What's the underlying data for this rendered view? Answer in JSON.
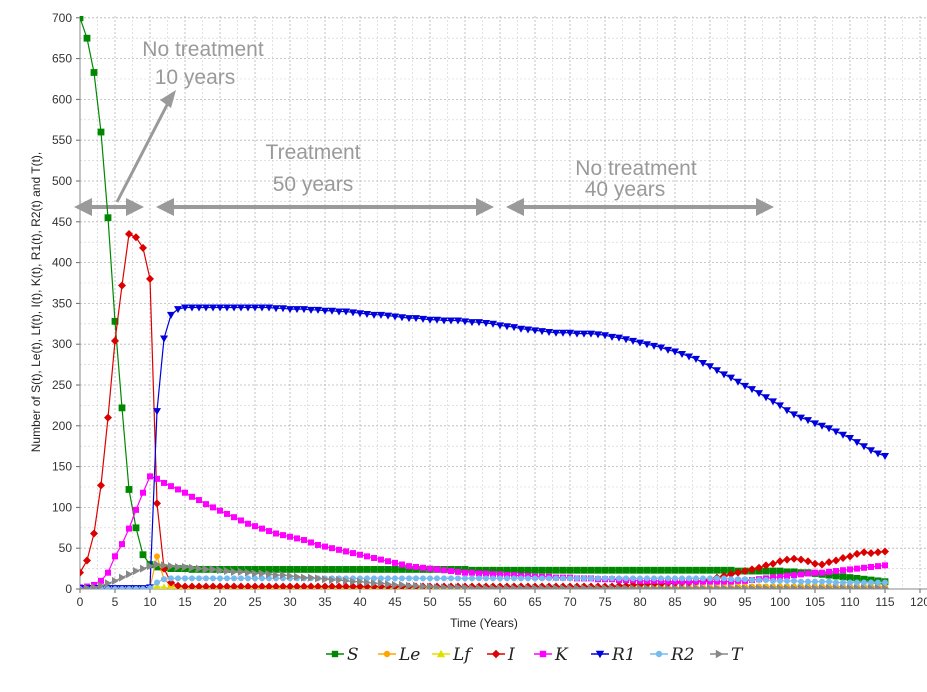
{
  "chart_data": {
    "type": "line",
    "title": "",
    "xlabel": "Time (Years)",
    "ylabel": "Number of S(t), Le(t), Lf(t), I(t), K(t), R1(t), R2(t) and T(t),",
    "xlim": [
      0,
      120
    ],
    "ylim": [
      0,
      700
    ],
    "xticks": [
      "0",
      "5",
      "10",
      "15",
      "20",
      "25",
      "30",
      "35",
      "40",
      "45",
      "50",
      "55",
      "60",
      "65",
      "70",
      "75",
      "80",
      "85",
      "90",
      "95",
      "100",
      "105",
      "110",
      "115",
      "120"
    ],
    "yticks": [
      "0",
      "50",
      "100",
      "150",
      "200",
      "250",
      "300",
      "350",
      "400",
      "450",
      "500",
      "550",
      "600",
      "650",
      "700"
    ],
    "grid": true,
    "legend_position": "bottom",
    "annotations": [
      {
        "lines": [
          "No treatment",
          "10 years"
        ],
        "span": [
          0,
          10
        ]
      },
      {
        "lines": [
          "Treatment",
          "50 years"
        ],
        "span": [
          10,
          60
        ]
      },
      {
        "lines": [
          "No treatment",
          "40 years"
        ],
        "span": [
          60,
          100
        ]
      }
    ],
    "series": [
      {
        "name": "S",
        "color": "#008800",
        "marker": "square",
        "step": 1,
        "start": 0,
        "values": [
          700,
          675,
          633,
          560,
          455,
          328,
          222,
          122,
          75,
          42,
          30,
          27,
          26,
          25,
          25,
          25,
          24,
          24,
          24,
          24,
          24,
          24,
          24,
          24,
          24,
          24,
          24,
          24,
          24,
          24,
          24,
          24,
          24,
          24,
          24,
          24,
          24,
          24,
          24,
          24,
          24,
          24,
          24,
          24,
          24,
          24,
          24,
          24,
          24,
          24,
          24,
          24,
          24,
          24,
          24,
          24,
          23,
          23,
          23,
          23,
          23,
          23,
          23,
          23,
          23,
          23,
          23,
          23,
          23,
          23,
          23,
          23,
          23,
          23,
          23,
          23,
          23,
          23,
          23,
          23,
          23,
          23,
          23,
          23,
          23,
          23,
          23,
          23,
          23,
          23,
          23,
          23,
          23,
          23,
          22,
          22,
          22,
          22,
          22,
          22,
          22,
          21,
          21,
          20,
          20,
          19,
          18,
          17,
          16,
          15,
          14,
          13,
          12,
          11,
          10,
          9
        ]
      },
      {
        "name": "Le",
        "color": "#ffa500",
        "marker": "circle",
        "step": 1,
        "start": 0,
        "values": [
          0,
          1,
          1,
          1,
          1,
          1,
          1,
          1,
          1,
          1,
          2,
          40,
          12,
          4,
          3,
          2,
          2,
          2,
          2,
          2,
          2,
          2,
          2,
          2,
          2,
          2,
          2,
          2,
          2,
          2,
          2,
          2,
          2,
          2,
          2,
          2,
          2,
          2,
          2,
          2,
          2,
          2,
          2,
          2,
          2,
          2,
          2,
          2,
          2,
          2,
          2,
          2,
          2,
          2,
          2,
          2,
          2,
          2,
          2,
          2,
          2,
          2,
          2,
          2,
          2,
          2,
          2,
          2,
          2,
          2,
          2,
          2,
          2,
          2,
          2,
          2,
          2,
          2,
          2,
          2,
          2,
          2,
          2,
          2,
          2,
          2,
          2,
          2,
          2,
          2,
          2,
          2,
          2,
          2,
          3,
          3,
          3,
          3,
          3,
          3,
          3,
          3,
          3,
          3,
          3,
          3,
          3,
          3,
          3,
          3,
          3,
          3,
          3,
          3,
          3,
          3
        ]
      },
      {
        "name": "Lf",
        "color": "#e0e000",
        "marker": "triangle-up",
        "step": 1,
        "start": 0,
        "values": [
          0,
          0,
          0,
          0,
          0,
          0,
          0,
          0,
          0,
          0,
          1,
          3,
          2,
          1,
          1,
          1,
          1,
          1,
          1,
          1,
          1,
          1,
          1,
          1,
          1,
          1,
          1,
          1,
          1,
          1,
          1,
          1,
          1,
          1,
          1,
          1,
          1,
          1,
          1,
          1,
          1,
          1,
          1,
          1,
          1,
          1,
          1,
          1,
          1,
          1,
          1,
          1,
          1,
          1,
          1,
          1,
          1,
          1,
          1,
          1,
          1,
          1,
          1,
          1,
          1,
          1,
          1,
          1,
          1,
          1,
          1,
          1,
          1,
          1,
          1,
          1,
          1,
          1,
          1,
          1,
          1,
          1,
          1,
          1,
          1,
          1,
          1,
          1,
          1,
          1,
          1,
          1,
          1,
          1,
          1,
          1,
          1,
          1,
          1,
          1,
          1,
          1,
          1,
          1,
          1,
          1,
          1,
          1,
          1,
          1,
          1,
          1,
          1,
          1,
          1,
          1
        ]
      },
      {
        "name": "I",
        "color": "#dd0000",
        "marker": "diamond",
        "step": 1,
        "start": 0,
        "values": [
          20,
          35,
          68,
          127,
          210,
          304,
          372,
          435,
          431,
          418,
          380,
          105,
          25,
          8,
          4,
          3,
          3,
          3,
          3,
          3,
          3,
          3,
          3,
          3,
          3,
          3,
          3,
          3,
          3,
          3,
          3,
          3,
          3,
          3,
          3,
          3,
          3,
          3,
          3,
          3,
          3,
          3,
          3,
          3,
          3,
          3,
          3,
          3,
          3,
          3,
          3,
          3,
          3,
          3,
          3,
          3,
          3,
          3,
          3,
          3,
          3,
          3,
          3,
          3,
          3,
          3,
          3,
          3,
          3,
          3,
          3,
          3,
          3,
          3,
          3,
          3,
          3,
          4,
          4,
          5,
          5,
          6,
          6,
          6,
          7,
          7,
          8,
          8,
          9,
          10,
          12,
          14,
          16,
          18,
          20,
          22,
          24,
          26,
          29,
          31,
          34,
          36,
          37,
          36,
          34,
          31,
          30,
          33,
          35,
          38,
          40,
          43,
          45,
          44,
          45,
          46
        ]
      },
      {
        "name": "K",
        "color": "#ff00ff",
        "marker": "square",
        "step": 1,
        "start": 0,
        "values": [
          2,
          3,
          5,
          10,
          20,
          40,
          55,
          74,
          97,
          118,
          138,
          135,
          130,
          126,
          122,
          118,
          113,
          109,
          104,
          100,
          96,
          92,
          88,
          84,
          80,
          77,
          74,
          71,
          68,
          66,
          64,
          62,
          60,
          57,
          54,
          52,
          50,
          48,
          46,
          44,
          42,
          40,
          38,
          36,
          34,
          32,
          30,
          28,
          27,
          26,
          25,
          24,
          23,
          22,
          21,
          20,
          20,
          19,
          19,
          18,
          18,
          17,
          17,
          16,
          16,
          15,
          15,
          15,
          14,
          14,
          14,
          13,
          13,
          13,
          12,
          12,
          12,
          11,
          11,
          11,
          10,
          10,
          10,
          10,
          9,
          9,
          9,
          9,
          9,
          9,
          9,
          9,
          9,
          9,
          10,
          10,
          11,
          12,
          13,
          14,
          15,
          16,
          17,
          18,
          19,
          20,
          20,
          21,
          22,
          23,
          24,
          25,
          26,
          27,
          28,
          29
        ]
      },
      {
        "name": "R1",
        "color": "#0000dd",
        "marker": "triangle-down",
        "step": 1,
        "start": 0,
        "values": [
          1,
          1,
          1,
          1,
          1,
          1,
          1,
          1,
          1,
          1,
          2,
          218,
          307,
          336,
          343,
          345,
          345,
          345,
          345,
          345,
          345,
          345,
          345,
          345,
          345,
          345,
          345,
          345,
          344,
          344,
          343,
          343,
          343,
          342,
          342,
          341,
          341,
          340,
          340,
          339,
          338,
          337,
          336,
          336,
          335,
          334,
          333,
          332,
          332,
          331,
          330,
          330,
          329,
          329,
          329,
          328,
          327,
          327,
          326,
          325,
          323,
          322,
          321,
          319,
          318,
          317,
          316,
          315,
          314,
          314,
          314,
          313,
          313,
          313,
          312,
          311,
          309,
          308,
          306,
          304,
          302,
          300,
          298,
          296,
          293,
          291,
          288,
          285,
          282,
          277,
          273,
          268,
          263,
          259,
          254,
          249,
          245,
          240,
          235,
          230,
          225,
          219,
          214,
          210,
          207,
          203,
          200,
          197,
          193,
          189,
          185,
          180,
          175,
          170,
          166,
          163
        ]
      },
      {
        "name": "R2",
        "color": "#77bbee",
        "marker": "circle",
        "step": 1,
        "start": 0,
        "values": [
          0,
          0,
          0,
          0,
          0,
          0,
          0,
          0,
          0,
          0,
          1,
          8,
          12,
          13,
          13,
          13,
          13,
          13,
          13,
          13,
          13,
          13,
          13,
          13,
          13,
          13,
          13,
          13,
          13,
          13,
          13,
          13,
          13,
          13,
          13,
          13,
          13,
          13,
          13,
          13,
          13,
          13,
          13,
          13,
          13,
          13,
          13,
          13,
          13,
          13,
          13,
          13,
          13,
          13,
          13,
          13,
          13,
          13,
          13,
          13,
          13,
          13,
          13,
          13,
          13,
          13,
          13,
          13,
          13,
          13,
          13,
          13,
          13,
          13,
          13,
          13,
          13,
          13,
          13,
          13,
          13,
          13,
          13,
          13,
          13,
          13,
          13,
          13,
          13,
          13,
          13,
          13,
          13,
          12,
          12,
          12,
          11,
          11,
          11,
          10,
          10,
          10,
          10,
          9,
          9,
          9,
          9,
          9,
          8,
          8,
          8,
          8,
          8,
          8,
          8,
          8
        ]
      },
      {
        "name": "T",
        "color": "#888888",
        "marker": "triangle-right",
        "step": 1,
        "start": 0,
        "values": [
          0,
          1,
          2,
          4,
          7,
          10,
          14,
          18,
          22,
          25,
          28,
          30,
          29,
          28,
          27,
          27,
          26,
          25,
          24,
          24,
          23,
          22,
          21,
          21,
          20,
          19,
          19,
          18,
          17,
          17,
          16,
          15,
          14,
          14,
          13,
          12,
          11,
          11,
          10,
          9,
          9,
          8,
          7,
          7,
          6,
          5,
          5,
          4,
          4,
          3,
          3,
          2,
          2,
          2,
          2,
          2,
          1,
          1,
          1,
          1,
          1,
          1,
          1,
          1,
          1,
          1,
          1,
          1,
          1,
          1,
          1,
          1,
          1,
          1,
          1,
          1,
          1,
          1,
          1,
          1,
          1,
          1,
          1,
          1,
          1,
          1,
          1,
          1,
          1,
          1,
          1,
          1,
          1,
          1,
          1,
          1,
          1,
          1,
          1,
          1,
          1,
          1,
          1,
          1,
          1,
          1,
          1,
          1,
          1,
          1,
          1,
          1,
          1,
          1,
          1,
          1
        ]
      }
    ]
  }
}
